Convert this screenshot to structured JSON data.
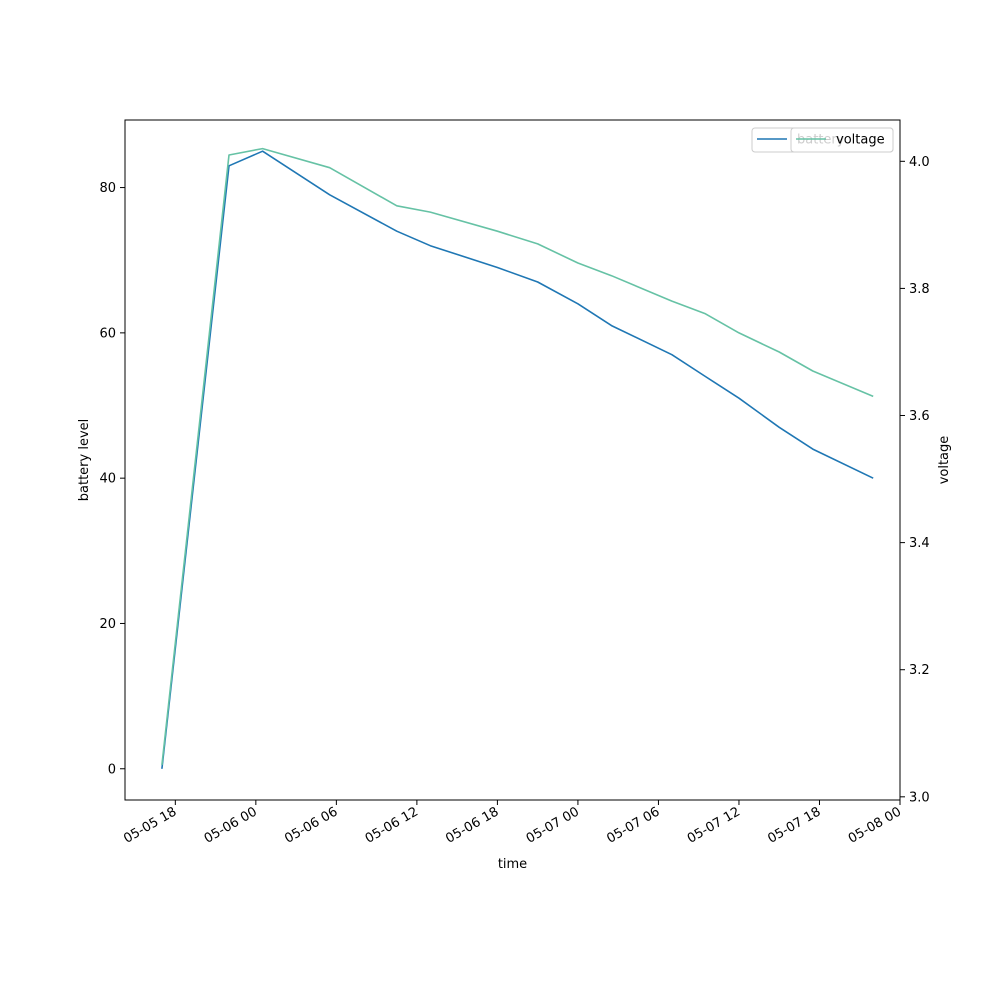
{
  "chart_data": {
    "type": "line",
    "xlabel": "time",
    "ylabel": "battery level",
    "ylabel_right": "voltage",
    "x_ticks": [
      "05-05 18",
      "05-06 00",
      "05-06 06",
      "05-06 12",
      "05-06 18",
      "05-07 00",
      "05-07 06",
      "05-07 12",
      "05-07 18",
      "05-08 00"
    ],
    "y_ticks_left": [
      "0",
      "20",
      "40",
      "60",
      "80"
    ],
    "y_ticks_right": [
      "3.0",
      "3.2",
      "3.4",
      "3.6",
      "3.8",
      "4.0"
    ],
    "xlim": [
      "2025-05-05 14:15",
      "2025-05-08 00:00"
    ],
    "ylim_left": [
      -4.3,
      89.3
    ],
    "ylim_right": [
      2.995,
      4.065
    ],
    "grid": false,
    "legend_position": "top-right",
    "series": [
      {
        "name": "battery",
        "axis": "left",
        "color": "#1f77b4",
        "x": [
          "2025-05-05 17:00",
          "2025-05-05 22:00",
          "2025-05-06 00:30",
          "2025-05-06 05:30",
          "2025-05-06 10:30",
          "2025-05-06 13:00",
          "2025-05-06 18:00",
          "2025-05-06 21:00",
          "2025-05-07 00:00",
          "2025-05-07 02:30",
          "2025-05-07 07:00",
          "2025-05-07 09:30",
          "2025-05-07 12:00",
          "2025-05-07 15:00",
          "2025-05-07 17:30",
          "2025-05-07 22:00"
        ],
        "values": [
          0,
          83,
          85,
          79,
          74,
          72,
          69,
          67,
          64,
          61,
          57,
          54,
          51,
          47,
          44,
          40
        ]
      },
      {
        "name": "voltage",
        "axis": "right",
        "color": "#66c2a5",
        "x": [
          "2025-05-05 17:00",
          "2025-05-05 22:00",
          "2025-05-06 00:30",
          "2025-05-06 05:30",
          "2025-05-06 10:30",
          "2025-05-06 13:00",
          "2025-05-06 18:00",
          "2025-05-06 21:00",
          "2025-05-07 00:00",
          "2025-05-07 02:30",
          "2025-05-07 07:00",
          "2025-05-07 09:30",
          "2025-05-07 12:00",
          "2025-05-07 15:00",
          "2025-05-07 17:30",
          "2025-05-07 22:00"
        ],
        "values": [
          3.05,
          4.01,
          4.02,
          3.99,
          3.93,
          3.92,
          3.89,
          3.87,
          3.84,
          3.82,
          3.78,
          3.76,
          3.73,
          3.7,
          3.67,
          3.63
        ]
      }
    ]
  }
}
